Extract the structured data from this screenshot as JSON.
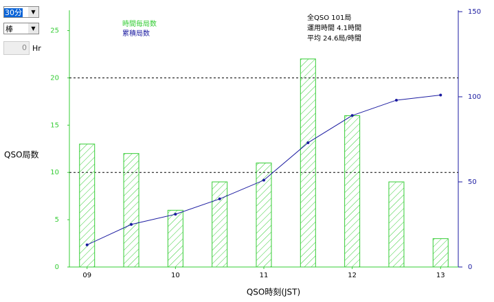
{
  "controls": {
    "interval": "30分",
    "chart_type": "棒",
    "offset": "0",
    "offset_unit": "Hr"
  },
  "chart_data": {
    "type": "bar",
    "x_label": "QSO時刻(JST)",
    "y_label": "QSO局数",
    "annotations": [
      "全QSO 101局",
      "運用時間 4.1時間",
      "平均 24.6局/時間"
    ],
    "x": [
      9,
      9.5,
      10,
      10.5,
      11,
      11.5,
      12,
      12.5,
      13
    ],
    "series": [
      {
        "name": "時間毎局数",
        "color": "#33cc33",
        "values": [
          13,
          12,
          6,
          9,
          11,
          22,
          16,
          9,
          3
        ]
      },
      {
        "name": "累積局数",
        "color": "#1a1aa0",
        "axis": "y2",
        "values": [
          13,
          25,
          31,
          40,
          51,
          73,
          89,
          98,
          101
        ]
      }
    ],
    "xlim": [
      8.8,
      13.2
    ],
    "xticks": [
      {
        "value": 9,
        "label": "09"
      },
      10,
      11,
      12,
      13
    ],
    "ylim": [
      0,
      27
    ],
    "yticks": [
      0,
      5,
      10,
      15,
      20,
      25
    ],
    "y2lim": [
      0,
      150
    ],
    "y2ticks": [
      0,
      50,
      100,
      150
    ],
    "grid_values": [
      10,
      20
    ]
  }
}
